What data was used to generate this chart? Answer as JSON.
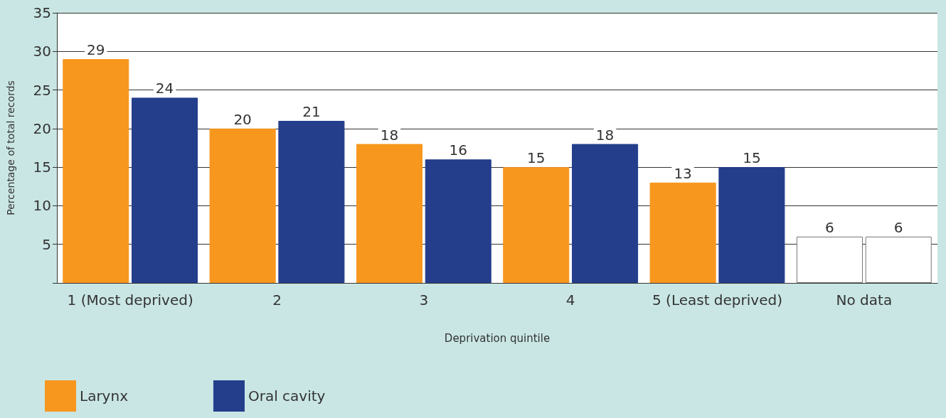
{
  "chart_data": {
    "type": "bar",
    "xlabel": "Deprivation quintile",
    "ylabel": "Percentage of total records",
    "categories": [
      "1 (Most deprived)",
      "2",
      "3",
      "4",
      "5 (Least deprived)",
      "No data"
    ],
    "series": [
      {
        "name": "Larynx",
        "color": "#f7971e",
        "colors": [
          "#f7971e",
          "#f7971e",
          "#f7971e",
          "#f7971e",
          "#f7971e",
          "#ffffff"
        ],
        "values": [
          29,
          20,
          18,
          15,
          13,
          6
        ]
      },
      {
        "name": "Oral cavity",
        "color": "#243e8c",
        "colors": [
          "#243e8c",
          "#243e8c",
          "#243e8c",
          "#243e8c",
          "#243e8c",
          "#ffffff"
        ],
        "values": [
          24,
          21,
          16,
          18,
          15,
          6
        ]
      }
    ],
    "ylim": [
      0,
      35
    ],
    "yticks": [
      {
        "value": 0,
        "label": null
      },
      5,
      10,
      15,
      20,
      25,
      30,
      35
    ],
    "grid": "y",
    "legend": "bottom left",
    "data_labels": true
  }
}
